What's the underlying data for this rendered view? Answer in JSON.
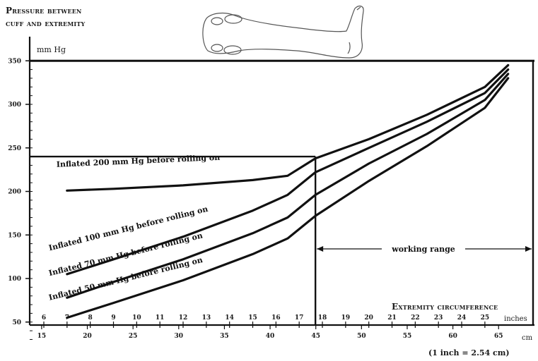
{
  "chart_data": {
    "type": "line",
    "title_lines": [
      "Pressure between",
      "cuff and extremity"
    ],
    "ylabel": "mm Hg",
    "xlabel": "Extremity circumference",
    "x_unit_inches": "inches",
    "x_unit_cm": "cm",
    "conversion_note": "(1 inch = 2.54 cm)",
    "working_range_label": "working range",
    "ylim": [
      20,
      355
    ],
    "xlim_inches": [
      6,
      26
    ],
    "y_ticks": [
      {
        "value": 50,
        "label": "50"
      },
      {
        "value": 100,
        "label": "100"
      },
      {
        "value": 150,
        "label": "150"
      },
      {
        "value": 200,
        "label": "200"
      },
      {
        "value": 250,
        "label": "250"
      },
      {
        "value": 300,
        "label": "300"
      },
      {
        "value": 350,
        "label": "350"
      }
    ],
    "x_ticks_inches": [
      6,
      7,
      8,
      9,
      10,
      11,
      12,
      13,
      14,
      15,
      16,
      17,
      18,
      19,
      20,
      21,
      22,
      23,
      24,
      25
    ],
    "x_ticks_cm": [
      15,
      20,
      25,
      30,
      35,
      40,
      45,
      50,
      55,
      60,
      65
    ],
    "reference_lines": {
      "y_upper": 350,
      "y_limb": 240,
      "x_working_start": 17.7,
      "x_working_end": 26
    },
    "series": [
      {
        "name": "Inflated 200 mm Hg before rolling on",
        "points": [
          [
            7,
            201
          ],
          [
            9,
            203
          ],
          [
            12,
            207
          ],
          [
            15,
            213
          ],
          [
            16.5,
            218
          ],
          [
            17.7,
            238
          ],
          [
            20,
            260
          ],
          [
            22.5,
            288
          ],
          [
            25,
            320
          ],
          [
            26,
            345
          ]
        ]
      },
      {
        "name": "Inflated 100 mm Hg before rolling on",
        "points": [
          [
            7,
            105
          ],
          [
            9,
            122
          ],
          [
            12,
            148
          ],
          [
            15,
            178
          ],
          [
            16.5,
            196
          ],
          [
            17.7,
            222
          ],
          [
            20,
            250
          ],
          [
            22.5,
            280
          ],
          [
            25,
            313
          ],
          [
            26,
            340
          ]
        ]
      },
      {
        "name": "Inflated 70 mm Hg before rolling on",
        "points": [
          [
            7,
            78
          ],
          [
            9,
            96
          ],
          [
            12,
            122
          ],
          [
            15,
            152
          ],
          [
            16.5,
            170
          ],
          [
            17.7,
            196
          ],
          [
            20,
            232
          ],
          [
            22.5,
            266
          ],
          [
            25,
            305
          ],
          [
            26,
            335
          ]
        ]
      },
      {
        "name": "Inflated 50 mm Hg before rolling on",
        "points": [
          [
            7,
            55
          ],
          [
            9,
            72
          ],
          [
            12,
            98
          ],
          [
            15,
            128
          ],
          [
            16.5,
            146
          ],
          [
            17.7,
            172
          ],
          [
            20,
            212
          ],
          [
            22.5,
            252
          ],
          [
            25,
            296
          ],
          [
            26,
            330
          ]
        ]
      }
    ]
  }
}
